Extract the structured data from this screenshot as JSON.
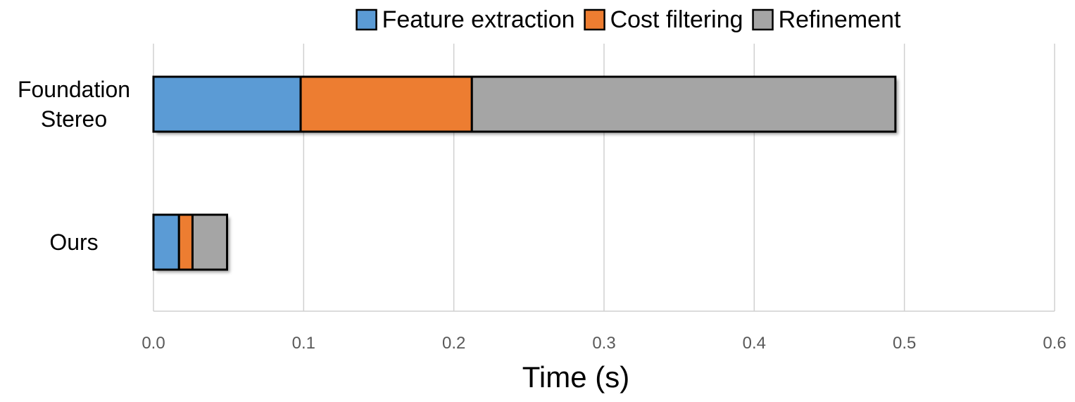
{
  "chart_data": {
    "type": "bar",
    "orientation": "horizontal",
    "stacked": true,
    "categories": [
      "Foundation\nStereo",
      "Ours"
    ],
    "series": [
      {
        "name": "Feature extraction",
        "values": [
          0.098,
          0.017
        ],
        "color": "#5B9BD5"
      },
      {
        "name": "Cost filtering",
        "values": [
          0.114,
          0.009
        ],
        "color": "#ED7D31"
      },
      {
        "name": "Refinement",
        "values": [
          0.282,
          0.023
        ],
        "color": "#A5A5A5"
      }
    ],
    "title": "",
    "xlabel": "Time (s)",
    "ylabel": "",
    "xlim": [
      0,
      0.6
    ],
    "xticks": [
      "0.0",
      "0.1",
      "0.2",
      "0.3",
      "0.4",
      "0.5",
      "0.6"
    ],
    "grid": "vertical",
    "legend_position": "top"
  }
}
